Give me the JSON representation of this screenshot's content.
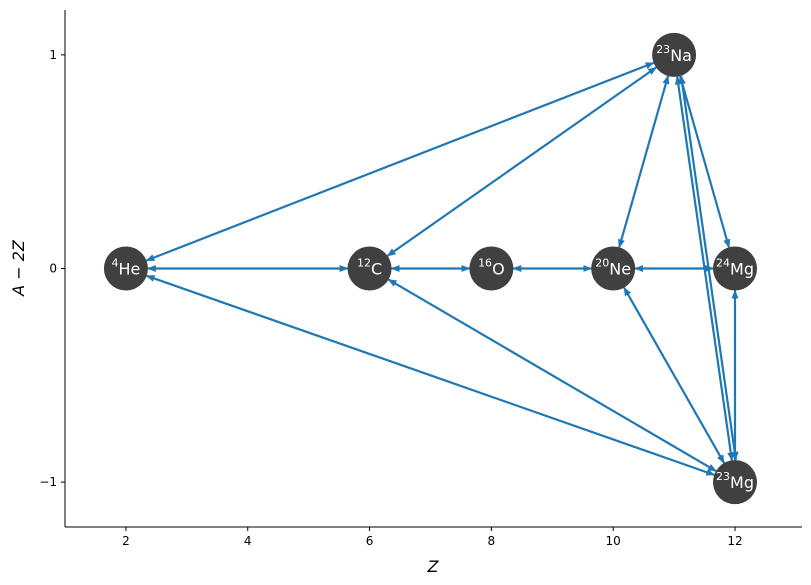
{
  "chart_data": {
    "type": "network",
    "xlabel": "Z",
    "ylabel": "A − 2Z",
    "xlim": [
      1,
      13.1
    ],
    "ylim": [
      -1.21,
      1.21
    ],
    "xticks": [
      2,
      4,
      6,
      8,
      10,
      12
    ],
    "yticks": [
      {
        "value": -1,
        "label": "−1"
      },
      0,
      1
    ],
    "node_color": "#404040",
    "edge_color": "#1f77b4",
    "nodes": [
      {
        "mass": "4",
        "symbol": "He",
        "x": 2,
        "y": 0
      },
      {
        "mass": "12",
        "symbol": "C",
        "x": 6,
        "y": 0
      },
      {
        "mass": "16",
        "symbol": "O",
        "x": 8,
        "y": 0
      },
      {
        "mass": "20",
        "symbol": "Ne",
        "x": 10,
        "y": 0
      },
      {
        "mass": "24",
        "symbol": "Mg",
        "x": 12,
        "y": 0
      },
      {
        "mass": "23",
        "symbol": "Na",
        "x": 11,
        "y": 1
      },
      {
        "mass": "23",
        "symbol": "Mg",
        "x": 12,
        "y": -1
      }
    ],
    "edges": [
      [
        0,
        1
      ],
      [
        1,
        2
      ],
      [
        2,
        3
      ],
      [
        3,
        4
      ],
      [
        0,
        5
      ],
      [
        1,
        5
      ],
      [
        5,
        3
      ],
      [
        5,
        4
      ],
      [
        5,
        6
      ],
      [
        6,
        5
      ],
      [
        0,
        6
      ],
      [
        1,
        6
      ],
      [
        3,
        6
      ],
      [
        4,
        6
      ]
    ]
  }
}
